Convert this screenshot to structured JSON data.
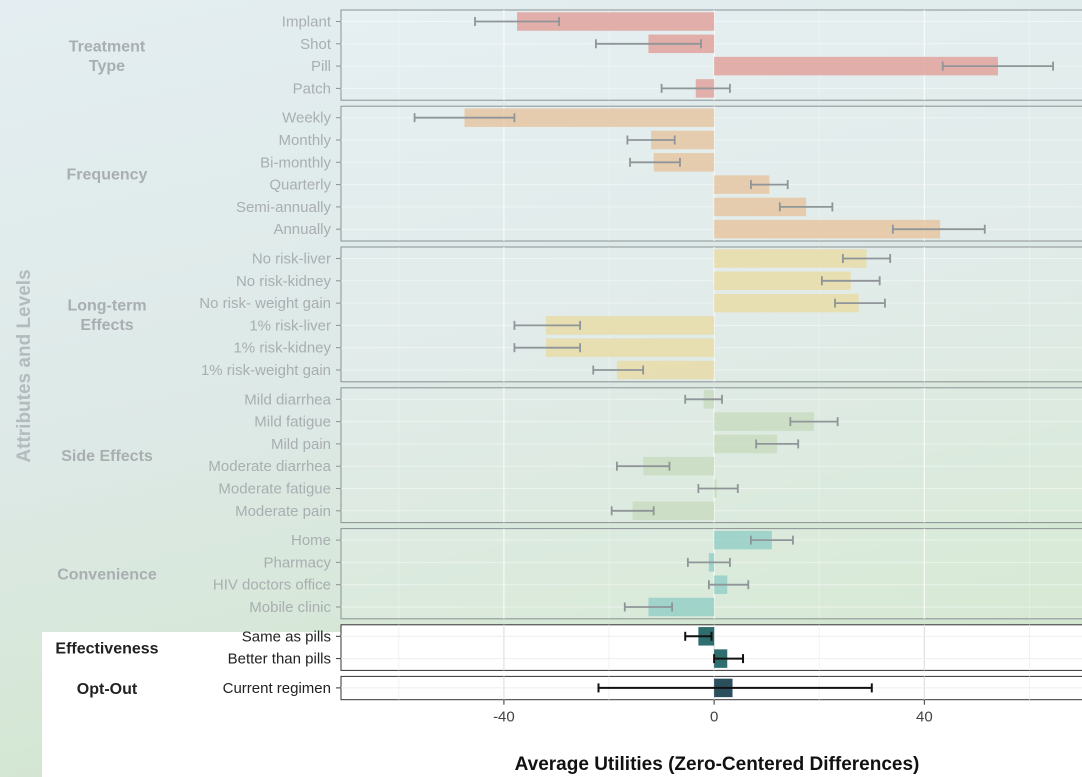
{
  "chart_data": {
    "type": "bar",
    "orientation": "horizontal",
    "ylabel": "Attributes and Levels",
    "xlabel": "Average Utilities (Zero-Centered Differences)",
    "xlim": [
      -71,
      70
    ],
    "xticks": [
      -40,
      0,
      40
    ],
    "grid": true,
    "error_bars": true,
    "groups": [
      {
        "name": "Treatment Type",
        "name_lines": [
          "Treatment",
          "Type"
        ],
        "color": "#e0a09a",
        "levels": [
          {
            "label": "Implant",
            "value": -37.5,
            "ci": [
              -45.5,
              -29.5
            ]
          },
          {
            "label": "Shot",
            "value": -12.5,
            "ci": [
              -22.5,
              -2.5
            ]
          },
          {
            "label": "Pill",
            "value": 54,
            "ci": [
              43.5,
              64.5
            ]
          },
          {
            "label": "Patch",
            "value": -3.5,
            "ci": [
              -10,
              3
            ]
          }
        ]
      },
      {
        "name": "Frequency",
        "name_lines": [
          "Frequency"
        ],
        "color": "#e6c4a0",
        "levels": [
          {
            "label": "Weekly",
            "value": -47.5,
            "ci": [
              -57,
              -38
            ]
          },
          {
            "label": "Monthly",
            "value": -12,
            "ci": [
              -16.5,
              -7.5
            ]
          },
          {
            "label": "Bi-monthly",
            "value": -11.5,
            "ci": [
              -16,
              -6.5
            ]
          },
          {
            "label": "Quarterly",
            "value": 10.5,
            "ci": [
              7,
              14
            ]
          },
          {
            "label": "Semi-annually",
            "value": 17.5,
            "ci": [
              12.5,
              22.5
            ]
          },
          {
            "label": "Annually",
            "value": 43,
            "ci": [
              34,
              51.5
            ]
          }
        ]
      },
      {
        "name": "Long-term Effects",
        "name_lines": [
          "Long-term",
          "Effects"
        ],
        "color": "#e8dba6",
        "levels": [
          {
            "label": "No risk-liver",
            "value": 29,
            "ci": [
              24.5,
              33.5
            ]
          },
          {
            "label": "No risk-kidney",
            "value": 26,
            "ci": [
              20.5,
              31.5
            ]
          },
          {
            "label": "No risk- weight gain",
            "value": 27.5,
            "ci": [
              23,
              32.5
            ]
          },
          {
            "label": "1% risk-liver",
            "value": -32,
            "ci": [
              -38,
              -25.5
            ]
          },
          {
            "label": "1% risk-kidney",
            "value": -32,
            "ci": [
              -38,
              -25.5
            ]
          },
          {
            "label": "1% risk-weight gain",
            "value": -18.5,
            "ci": [
              -23,
              -13.5
            ]
          }
        ]
      },
      {
        "name": "Side Effects",
        "name_lines": [
          "Side Effects"
        ],
        "color": "#c8dcc0",
        "levels": [
          {
            "label": "Mild diarrhea",
            "value": -2,
            "ci": [
              -5.5,
              1.5
            ]
          },
          {
            "label": "Mild fatigue",
            "value": 19,
            "ci": [
              14.5,
              23.5
            ]
          },
          {
            "label": "Mild pain",
            "value": 12,
            "ci": [
              8,
              16
            ]
          },
          {
            "label": "Moderate diarrhea",
            "value": -13.5,
            "ci": [
              -18.5,
              -8.5
            ]
          },
          {
            "label": "Moderate fatigue",
            "value": 0.5,
            "ci": [
              -3,
              4.5
            ]
          },
          {
            "label": "Moderate pain",
            "value": -15.5,
            "ci": [
              -19.5,
              -11.5
            ]
          }
        ]
      },
      {
        "name": "Convenience",
        "name_lines": [
          "Convenience"
        ],
        "color": "#93cfc6",
        "levels": [
          {
            "label": "Home",
            "value": 11,
            "ci": [
              7,
              15
            ]
          },
          {
            "label": "Pharmacy",
            "value": -1,
            "ci": [
              -5,
              3
            ]
          },
          {
            "label": "HIV doctors office",
            "value": 2.5,
            "ci": [
              -1,
              6.5
            ]
          },
          {
            "label": "Mobile clinic",
            "value": -12.5,
            "ci": [
              -17,
              -8
            ]
          }
        ]
      },
      {
        "name": "Effectiveness",
        "name_lines": [
          "Effectiveness"
        ],
        "color": "#2e6e6e",
        "levels": [
          {
            "label": "Same as pills",
            "value": -3,
            "ci": [
              -5.5,
              -0.5
            ]
          },
          {
            "label": "Better than pills",
            "value": 2.5,
            "ci": [
              0,
              5.5
            ]
          }
        ]
      },
      {
        "name": "Opt-Out",
        "name_lines": [
          "Opt-Out"
        ],
        "color": "#2c4f5e",
        "levels": [
          {
            "label": "Current regimen",
            "value": 3.5,
            "ci": [
              -22,
              30
            ]
          }
        ]
      }
    ]
  }
}
